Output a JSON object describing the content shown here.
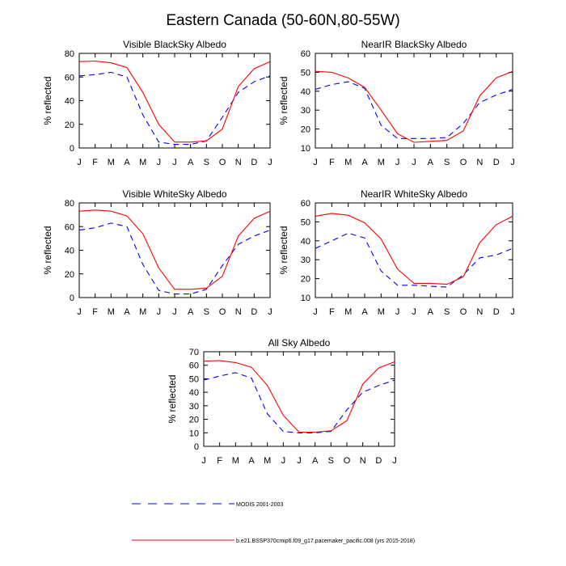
{
  "figure": {
    "title": "Eastern Canada (50-60N,80-55W)"
  },
  "legend": [
    {
      "label": "MODIS 2001-2003",
      "color": "#0000ff",
      "dash": true
    },
    {
      "label": "b.e21.BSSP370cmip6.f09_g17.pacemaker_pacific.008 (yrs 2015-2018)",
      "color": "#ff0000",
      "dash": false
    }
  ],
  "chart_data": [
    {
      "type": "line",
      "title": "Visible BlackSky Albedo",
      "ylabel": "% reflected",
      "categories": [
        "J",
        "F",
        "M",
        "A",
        "M",
        "J",
        "J",
        "A",
        "S",
        "O",
        "N",
        "D",
        "J"
      ],
      "ylim": [
        0,
        80
      ],
      "yticks": [
        0,
        20,
        40,
        60,
        80
      ],
      "series": [
        {
          "name": "MODIS 2001-2003",
          "color": "#0000ff",
          "dash": true,
          "values": [
            61,
            62,
            64,
            60,
            28,
            5,
            3,
            3,
            6,
            26,
            47,
            56,
            61
          ]
        },
        {
          "name": "b.e21.BSSP370cmip6.f09_g17.pacemaker_pacific.008 (yrs 2015-2018)",
          "color": "#ff0000",
          "dash": false,
          "values": [
            73,
            73.5,
            72,
            68,
            47,
            20,
            5,
            5,
            6,
            16,
            52,
            67,
            73
          ]
        }
      ]
    },
    {
      "type": "line",
      "title": "NearIR BlackSky Albedo",
      "ylabel": "% reflected",
      "categories": [
        "J",
        "F",
        "M",
        "A",
        "M",
        "J",
        "J",
        "A",
        "S",
        "O",
        "N",
        "D",
        "J"
      ],
      "ylim": [
        10,
        60
      ],
      "yticks": [
        10,
        20,
        30,
        40,
        50,
        60
      ],
      "series": [
        {
          "name": "MODIS 2001-2003",
          "color": "#0000ff",
          "dash": true,
          "values": [
            41,
            43.5,
            45,
            41.5,
            22,
            15,
            15,
            15,
            15.5,
            23,
            34,
            38,
            41
          ]
        },
        {
          "name": "b.e21.BSSP370cmip6.f09_g17.pacemaker_pacific.008 (yrs 2015-2018)",
          "color": "#ff0000",
          "dash": false,
          "values": [
            50.5,
            50,
            47,
            42,
            30,
            17.5,
            13,
            13.5,
            14,
            19,
            37.5,
            47,
            50.5
          ]
        }
      ]
    },
    {
      "type": "line",
      "title": "Visible WhiteSky Albedo",
      "ylabel": "% reflected",
      "categories": [
        "J",
        "F",
        "M",
        "A",
        "M",
        "J",
        "J",
        "A",
        "S",
        "O",
        "N",
        "D",
        "J"
      ],
      "ylim": [
        0,
        80
      ],
      "yticks": [
        0,
        20,
        40,
        60,
        80
      ],
      "series": [
        {
          "name": "MODIS 2001-2003",
          "color": "#0000ff",
          "dash": true,
          "values": [
            57,
            59,
            63,
            60,
            28,
            6,
            3,
            3,
            7,
            27,
            45,
            52,
            57
          ]
        },
        {
          "name": "b.e21.BSSP370cmip6.f09_g17.pacemaker_pacific.008 (yrs 2015-2018)",
          "color": "#ff0000",
          "dash": false,
          "values": [
            73,
            74,
            73,
            69,
            54,
            25,
            7,
            7,
            8,
            18,
            52,
            67,
            73
          ]
        }
      ]
    },
    {
      "type": "line",
      "title": "NearIR WhiteSky Albedo",
      "ylabel": "% reflected",
      "categories": [
        "J",
        "F",
        "M",
        "A",
        "M",
        "J",
        "J",
        "A",
        "S",
        "O",
        "N",
        "D",
        "J"
      ],
      "ylim": [
        10,
        60
      ],
      "yticks": [
        10,
        20,
        30,
        40,
        50,
        60
      ],
      "series": [
        {
          "name": "MODIS 2001-2003",
          "color": "#0000ff",
          "dash": true,
          "values": [
            36,
            40,
            44,
            41.5,
            24,
            16.5,
            16.5,
            16,
            15.5,
            22,
            31,
            32.5,
            36
          ]
        },
        {
          "name": "b.e21.BSSP370cmip6.f09_g17.pacemaker_pacific.008 (yrs 2015-2018)",
          "color": "#ff0000",
          "dash": false,
          "values": [
            53,
            54.5,
            53.5,
            49.5,
            41,
            25,
            17.5,
            17.5,
            17,
            21,
            39,
            48.5,
            53
          ]
        }
      ]
    },
    {
      "type": "line",
      "title": "All Sky Albedo",
      "ylabel": "% reflected",
      "categories": [
        "J",
        "F",
        "M",
        "A",
        "M",
        "J",
        "J",
        "A",
        "S",
        "O",
        "N",
        "D",
        "J"
      ],
      "ylim": [
        0,
        70
      ],
      "yticks": [
        0,
        10,
        20,
        30,
        40,
        50,
        60,
        70
      ],
      "series": [
        {
          "name": "MODIS 2001-2003",
          "color": "#0000ff",
          "dash": true,
          "values": [
            49,
            52,
            54.5,
            50.5,
            24,
            11,
            10,
            10,
            11,
            27,
            40,
            45,
            49
          ]
        },
        {
          "name": "b.e21.BSSP370cmip6.f09_g17.pacemaker_pacific.008 (yrs 2015-2018)",
          "color": "#ff0000",
          "dash": false,
          "values": [
            63,
            63.5,
            62,
            58.5,
            45,
            23,
            10.5,
            10.5,
            11.5,
            19,
            46,
            58,
            62.5
          ]
        }
      ]
    }
  ]
}
